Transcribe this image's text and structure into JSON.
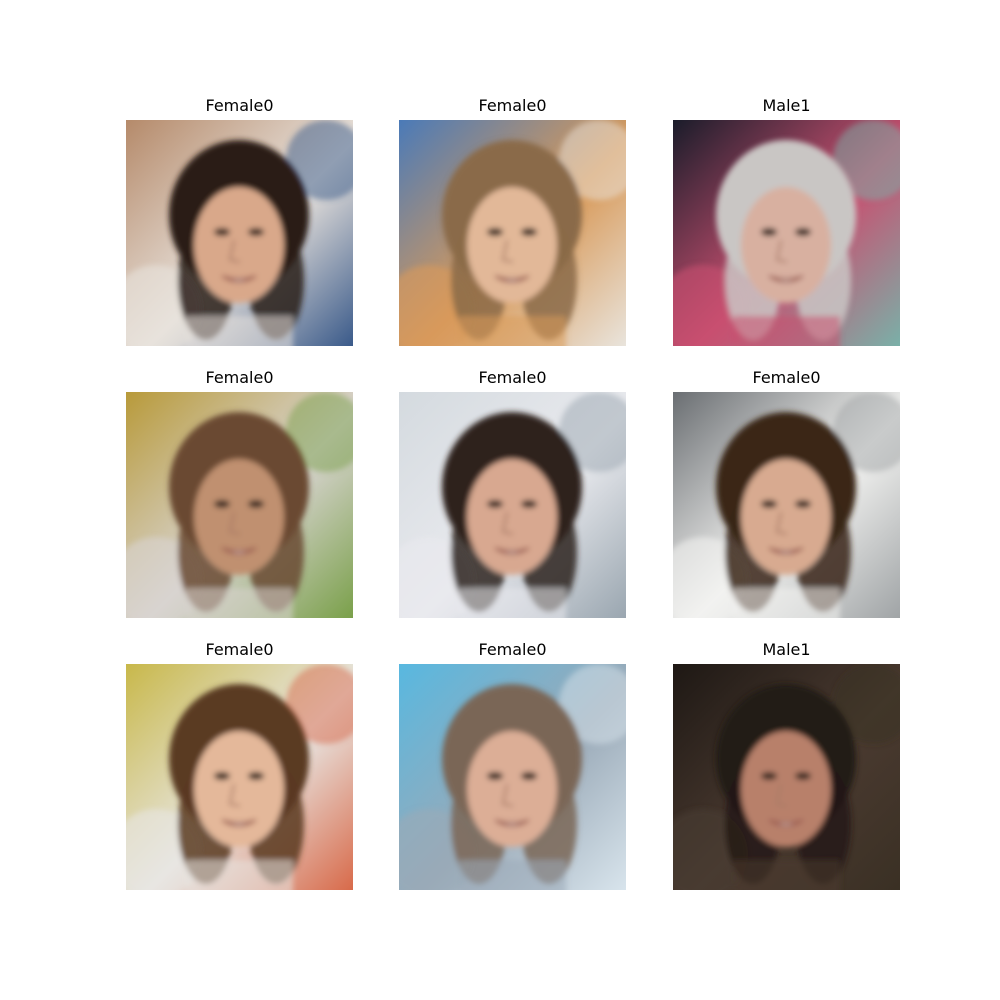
{
  "grid": [
    {
      "label": "Female0",
      "palette": {
        "bg1": "#b58a6a",
        "bg2": "#3a5a8a",
        "bg3": "#e8e2dc",
        "hair": "#2a1e18",
        "skin": "#d9a88a"
      }
    },
    {
      "label": "Female0",
      "palette": {
        "bg1": "#4a7ab8",
        "bg2": "#e9e4dc",
        "bg3": "#d89a5a",
        "hair": "#8a6a48",
        "skin": "#e2b898"
      }
    },
    {
      "label": "Male1",
      "palette": {
        "bg1": "#1a1c2a",
        "bg2": "#7ab0a8",
        "bg3": "#c85070",
        "hair": "#c9c6c4",
        "skin": "#d8b0a0"
      }
    },
    {
      "label": "Female0",
      "palette": {
        "bg1": "#b89a3a",
        "bg2": "#7aa04a",
        "bg3": "#d8d4d0",
        "hair": "#6a4a32",
        "skin": "#c09070"
      }
    },
    {
      "label": "Female0",
      "palette": {
        "bg1": "#d4dadf",
        "bg2": "#9aa6b0",
        "bg3": "#e9eaee",
        "hair": "#2e241e",
        "skin": "#d8a890"
      }
    },
    {
      "label": "Female0",
      "palette": {
        "bg1": "#6a6e72",
        "bg2": "#a0a4a6",
        "bg3": "#f2f2f0",
        "hair": "#3a2618",
        "skin": "#d8aa90"
      }
    },
    {
      "label": "Female0",
      "palette": {
        "bg1": "#c8b84a",
        "bg2": "#d86a4a",
        "bg3": "#e8e6e2",
        "hair": "#5a3a22",
        "skin": "#e4b89a"
      }
    },
    {
      "label": "Female0",
      "palette": {
        "bg1": "#58b8e0",
        "bg2": "#d8e4ec",
        "bg3": "#9aaab8",
        "hair": "#7a6656",
        "skin": "#dcae96"
      }
    },
    {
      "label": "Male1",
      "palette": {
        "bg1": "#1e1814",
        "bg2": "#3a3024",
        "bg3": "#4a3a30",
        "hair": "#241a14",
        "skin": "#b8806a"
      }
    }
  ]
}
